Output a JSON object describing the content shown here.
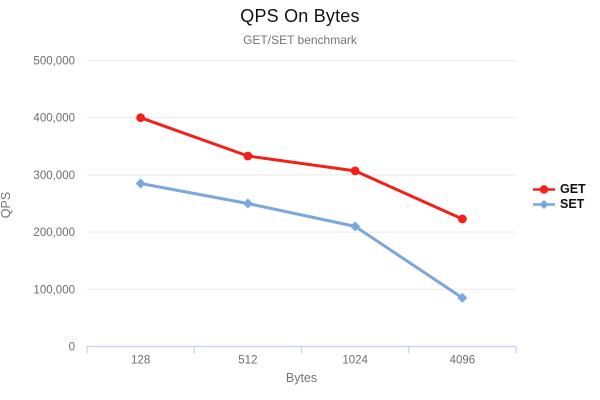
{
  "header": {
    "title": "QPS On Bytes",
    "subtitle": "GET/SET benchmark"
  },
  "axes": {
    "x_title": "Bytes",
    "y_title": "QPS"
  },
  "chart_data": {
    "type": "line",
    "title": "QPS On Bytes",
    "subtitle": "GET/SET benchmark",
    "xlabel": "Bytes",
    "ylabel": "QPS",
    "categories": [
      "128",
      "512",
      "1024",
      "4096"
    ],
    "series": [
      {
        "name": "GET",
        "color": "#f42018",
        "marker": "circle",
        "values": [
          400000,
          333000,
          307000,
          223000
        ]
      },
      {
        "name": "SET",
        "color": "#7aa7de",
        "marker": "diamond",
        "values": [
          285000,
          250000,
          210000,
          85000
        ]
      }
    ],
    "ylim": [
      0,
      500000
    ],
    "yticks": [
      {
        "value": 0,
        "label": "0"
      },
      {
        "value": 100000,
        "label": "100,000"
      },
      {
        "value": 200000,
        "label": "200,000"
      },
      {
        "value": 300000,
        "label": "300,000"
      },
      {
        "value": 400000,
        "label": "400,000"
      },
      {
        "value": 500000,
        "label": "500,000"
      }
    ],
    "grid": true,
    "legend_position": "right",
    "colors": {
      "grid": "#e9e9e9",
      "axis": "#c7d0ea",
      "tick_label": "#6e6e6e",
      "axis_title": "#757575",
      "title": "#111111",
      "subtitle": "#757575"
    }
  }
}
